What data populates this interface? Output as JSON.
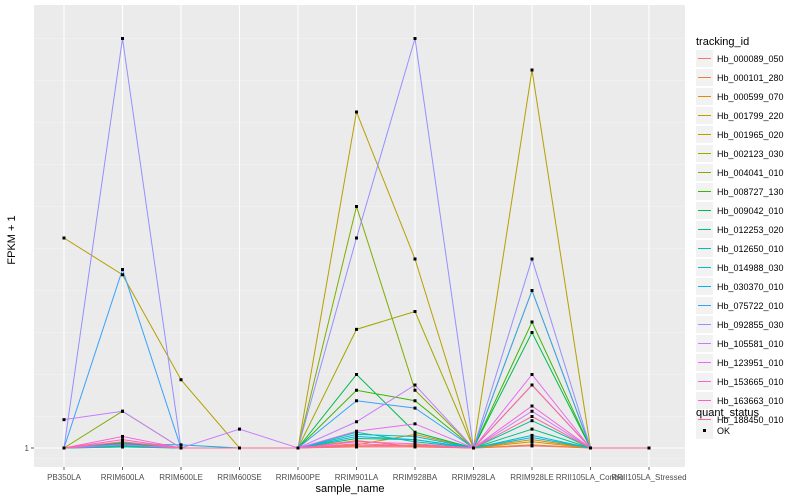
{
  "chart_data": {
    "type": "line",
    "xlabel": "sample_name",
    "ylabel": "FPKM + 1",
    "categories": [
      "PB350LA",
      "RRIM600LA",
      "RRIM600LE",
      "RRIM600SE",
      "RRIM600PE",
      "RRIM901LA",
      "RRIM928BA",
      "RRIM928LA",
      "RRIM928LE",
      "RRII105LA_Control",
      "RRII105LA_Stressed"
    ],
    "x_tick_labels": [
      "PB350LA",
      "RRIM600LA",
      "RRIM600LE",
      "RRIM600SE",
      "RRIM600PE",
      "RRIM901LA",
      "RRIM928BA",
      "RRIM928LA",
      "RRIM928LE",
      "RRII105LA_Control",
      "RRII105LA_Stressed"
    ],
    "y_ticks": [
      1
    ],
    "y_tick_labels": [
      "1"
    ],
    "grid": true,
    "legend_position": "right",
    "legend": {
      "title": "tracking_id",
      "quant_status_title": "quant_status",
      "quant_status_label": "OK"
    },
    "series": [
      {
        "name": "Hb_000089_050",
        "color": "#F8766D",
        "values": [
          1,
          1.25,
          1,
          1,
          1,
          1.1,
          1.1,
          1,
          1.2,
          1,
          1
        ]
      },
      {
        "name": "Hb_000101_280",
        "color": "#F07E3A",
        "values": [
          1,
          1.5,
          1,
          1,
          1,
          1.7,
          1.15,
          1,
          1.3,
          1,
          1
        ]
      },
      {
        "name": "Hb_000599_070",
        "color": "#DE8C00",
        "values": [
          1,
          1.2,
          1,
          1,
          1,
          1.3,
          2.3,
          1,
          1.8,
          1,
          1
        ]
      },
      {
        "name": "Hb_001799_220",
        "color": "#C99800",
        "values": [
          1,
          1.1,
          1,
          1,
          1,
          1.2,
          1.3,
          1,
          1.6,
          1,
          1
        ]
      },
      {
        "name": "Hb_001965_020",
        "color": "#B79F00",
        "values": [
          21,
          17.5,
          7.5,
          1,
          1,
          33,
          19,
          1,
          37,
          1,
          1
        ]
      },
      {
        "name": "Hb_002123_030",
        "color": "#A3A500",
        "values": [
          1,
          1.3,
          1,
          1,
          1,
          12.3,
          14,
          1,
          16,
          1,
          1
        ]
      },
      {
        "name": "Hb_004041_010",
        "color": "#7CAE00",
        "values": [
          1,
          4.5,
          1,
          1,
          1,
          24,
          6.5,
          1,
          7,
          1,
          1
        ]
      },
      {
        "name": "Hb_008727_130",
        "color": "#39B600",
        "values": [
          1,
          1.5,
          1,
          1,
          1,
          6.5,
          5.5,
          1,
          13,
          1,
          1
        ]
      },
      {
        "name": "Hb_009042_010",
        "color": "#00BB4E",
        "values": [
          1,
          1.4,
          1,
          1,
          1,
          8,
          2.5,
          1,
          12,
          1,
          1
        ]
      },
      {
        "name": "Hb_012253_020",
        "color": "#00BF7D",
        "values": [
          1,
          1.2,
          1,
          1,
          1,
          1.9,
          1.8,
          1,
          2.8,
          1,
          1
        ]
      },
      {
        "name": "Hb_012650_010",
        "color": "#00C1A3",
        "values": [
          1,
          1.3,
          1,
          1,
          1,
          2.5,
          1.6,
          1,
          3.6,
          1,
          1
        ]
      },
      {
        "name": "Hb_014988_030",
        "color": "#00BFC4",
        "values": [
          1,
          1.1,
          1,
          1,
          1,
          2.3,
          2.1,
          1,
          2.2,
          1,
          1
        ]
      },
      {
        "name": "Hb_030370_010",
        "color": "#00B8E7",
        "values": [
          1,
          1.4,
          1.3,
          1,
          1,
          2.1,
          1.8,
          1,
          2.0,
          1,
          1
        ]
      },
      {
        "name": "Hb_075722_010",
        "color": "#35A2FF",
        "values": [
          1,
          18,
          1,
          1,
          1,
          5.5,
          4.8,
          1,
          16,
          1,
          1
        ]
      },
      {
        "name": "Hb_092855_030",
        "color": "#9590FF",
        "values": [
          1,
          40,
          1,
          1,
          1,
          21,
          40,
          1,
          19,
          1,
          1
        ]
      },
      {
        "name": "Hb_105581_010",
        "color": "#C77CFF",
        "values": [
          3.7,
          4.5,
          1,
          2.8,
          1,
          3.5,
          7,
          1,
          4.5,
          1,
          1
        ]
      },
      {
        "name": "Hb_123951_010",
        "color": "#E76BF3",
        "values": [
          1,
          1.3,
          1,
          1,
          1,
          2.6,
          3.3,
          1,
          8,
          1,
          1
        ]
      },
      {
        "name": "Hb_153665_010",
        "color": "#FA62DB",
        "values": [
          1,
          2.1,
          1,
          1,
          1,
          1.6,
          1.4,
          1,
          5,
          1,
          1
        ]
      },
      {
        "name": "Hb_163663_010",
        "color": "#FF62BC",
        "values": [
          1,
          1.8,
          1,
          1,
          1,
          1.4,
          1.2,
          1,
          7,
          1,
          1
        ]
      },
      {
        "name": "Hb_188450_010",
        "color": "#FF6C91",
        "values": [
          1,
          1.6,
          1,
          1,
          1,
          1.2,
          1.2,
          1,
          4,
          1,
          1
        ]
      }
    ]
  }
}
